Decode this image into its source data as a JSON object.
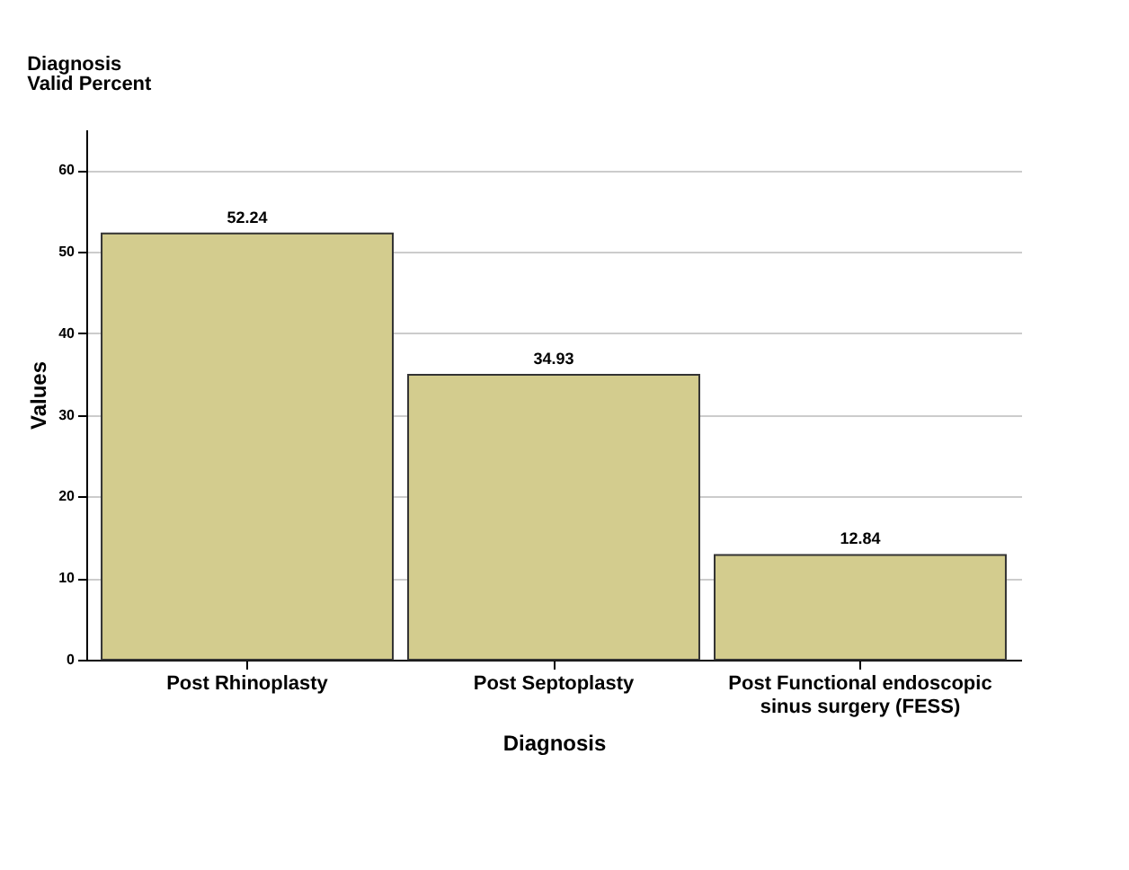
{
  "chart_data": {
    "type": "bar",
    "title": "Diagnosis",
    "subtitle": "Valid Percent",
    "xlabel": "Diagnosis",
    "ylabel": "Values",
    "categories": [
      "Post Rhinoplasty",
      "Post Septoplasty",
      "Post Functional endoscopic sinus surgery (FESS)"
    ],
    "values": [
      52.24,
      34.93,
      12.84
    ],
    "color": "#d3cc8e",
    "ylim": [
      0,
      65
    ],
    "yticks": [
      0,
      10,
      20,
      30,
      40,
      50,
      60
    ],
    "grid": "y",
    "data_labels": true
  }
}
